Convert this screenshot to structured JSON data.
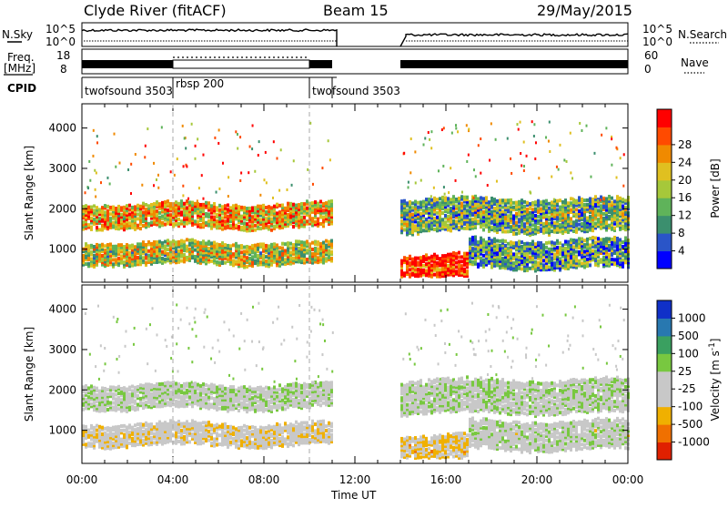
{
  "header": {
    "station": "Clyde River (fitACF)",
    "beam": "Beam 15",
    "date": "29/May/2015"
  },
  "top_panels": {
    "nsky_label": "N.Sky",
    "nsearch_label": "N.Search",
    "freq_label_1": "Freq.",
    "freq_label_2": "[MHz]",
    "nave_label": "Nave",
    "cpid_label": "CPID",
    "noise_ticks_left": [
      "10^5",
      "10^0"
    ],
    "noise_ticks_right": [
      "10^5",
      "10^0"
    ],
    "freq_ticks_left": [
      "18",
      "8"
    ],
    "nave_ticks_right": [
      "60",
      "0"
    ]
  },
  "cpid_segments": [
    {
      "start": 0,
      "end": 4,
      "name": "twofsound 3503"
    },
    {
      "start": 4,
      "end": 10,
      "name": "rbsp 200"
    },
    {
      "start": 10,
      "end": 11,
      "name": "twofsound 3503"
    }
  ],
  "power_colorbar": {
    "label": "Power [dB]",
    "ticks": [
      "4",
      "8",
      "12",
      "16",
      "20",
      "24",
      "28"
    ],
    "colors": [
      "#0000ff",
      "#2a55c8",
      "#3b8f6e",
      "#5fb35a",
      "#a6c83a",
      "#e0c020",
      "#f08a00",
      "#ff4a00",
      "#ff0000"
    ]
  },
  "velocity_colorbar": {
    "label": "Velocity [m s",
    "label_sup": "-1",
    "label_end": "]",
    "ticks": [
      "1000",
      "500",
      "100",
      "25",
      "-25",
      "-100",
      "-500",
      "-1000"
    ],
    "colors": [
      "#1030c8",
      "#2878b0",
      "#3aa060",
      "#78c840",
      "#c8c8c8",
      "#c8c8c8",
      "#f0b000",
      "#f07000",
      "#e02000"
    ]
  },
  "axes": {
    "ylabel": "Slant Range [km]",
    "xlabel": "Time UT",
    "xticks": [
      "00:00",
      "04:00",
      "08:00",
      "12:00",
      "16:00",
      "20:00",
      "00:00"
    ],
    "yticks": [
      "1000",
      "2000",
      "3000",
      "4000"
    ]
  },
  "chart_data": [
    {
      "type": "heatmap",
      "title": "",
      "xlabel": "Time UT",
      "ylabel": "Slant Range [km]",
      "xlim": [
        0,
        24
      ],
      "ylim": [
        180,
        4600
      ],
      "value_label": "Power [dB]",
      "value_range": [
        0,
        30
      ],
      "data_gap_hours": [
        11,
        14
      ],
      "bands": [
        {
          "x_start": 0,
          "x_end": 11,
          "range_km": [
            1500,
            2100
          ],
          "value": 20
        },
        {
          "x_start": 0,
          "x_end": 11,
          "range_km": [
            600,
            1100
          ],
          "value": 16
        },
        {
          "x_start": 14,
          "x_end": 24,
          "range_km": [
            1400,
            2200
          ],
          "value": 12
        },
        {
          "x_start": 14,
          "x_end": 17,
          "range_km": [
            180,
            800
          ],
          "value": 28
        },
        {
          "x_start": 17,
          "x_end": 24,
          "range_km": [
            500,
            1200
          ],
          "value": 10
        }
      ]
    },
    {
      "type": "heatmap",
      "title": "",
      "xlabel": "Time UT",
      "ylabel": "Slant Range [km]",
      "xlim": [
        0,
        24
      ],
      "ylim": [
        180,
        4600
      ],
      "value_label": "Velocity [m s-1]",
      "value_range": [
        -1000,
        1000
      ],
      "data_gap_hours": [
        11,
        14
      ],
      "bands": [
        {
          "x_start": 0,
          "x_end": 11,
          "range_km": [
            1500,
            2100
          ],
          "value": 0
        },
        {
          "x_start": 0,
          "x_end": 11,
          "range_km": [
            600,
            1100
          ],
          "value": -200
        },
        {
          "x_start": 14,
          "x_end": 24,
          "range_km": [
            1400,
            2200
          ],
          "value": 0
        },
        {
          "x_start": 14,
          "x_end": 17,
          "range_km": [
            180,
            800
          ],
          "value": -300
        },
        {
          "x_start": 17,
          "x_end": 24,
          "range_km": [
            500,
            1200
          ],
          "value": -50
        }
      ]
    }
  ]
}
